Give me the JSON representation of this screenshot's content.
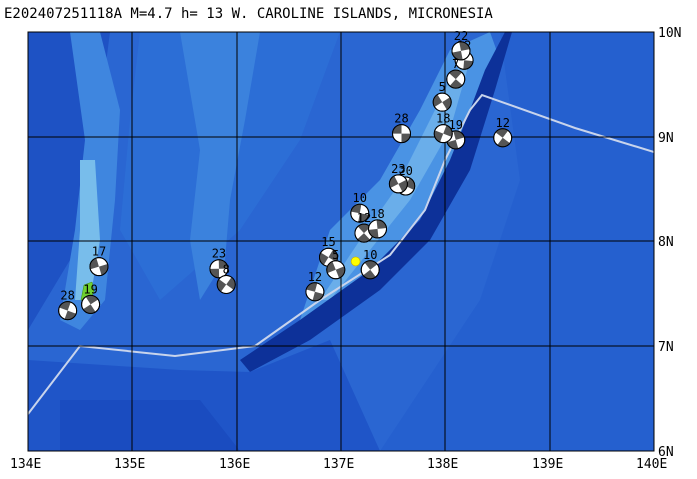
{
  "title": "E202407251118A M=4.7 h= 13 W. CAROLINE ISLANDS, MICRONESIA",
  "lon_labels": [
    "134E",
    "135E",
    "136E",
    "137E",
    "138E",
    "139E",
    "140E"
  ],
  "lat_labels": [
    "10N",
    "9N",
    "8N",
    "7N",
    "6N"
  ],
  "colors": {
    "ocean_deep": "#1d4fc4",
    "ocean_mid": "#2a6fd8",
    "ocean_shallow": "#4f9be6",
    "ridge": "#7cc1ee",
    "trench": "#0c2f9a",
    "grid": "#000000",
    "boundary": "#c8d4ec",
    "island": "#6fcf2f",
    "epicenter": "#ffff00"
  },
  "events": [
    {
      "label": "28",
      "lon": 137.58,
      "lat": 9.03
    },
    {
      "label": "12",
      "lon": 138.55,
      "lat": 8.99
    },
    {
      "label": "19",
      "lon": 138.1,
      "lat": 8.97
    },
    {
      "label": "18",
      "lon": 137.98,
      "lat": 9.03
    },
    {
      "label": "5",
      "lon": 137.97,
      "lat": 9.33
    },
    {
      "label": "12",
      "lon": 138.18,
      "lat": 9.73
    },
    {
      "label": "7",
      "lon": 138.1,
      "lat": 9.55
    },
    {
      "label": "22",
      "lon": 138.15,
      "lat": 9.82
    },
    {
      "label": "20",
      "lon": 137.62,
      "lat": 8.53
    },
    {
      "label": "23",
      "lon": 137.55,
      "lat": 8.55
    },
    {
      "label": "10",
      "lon": 137.18,
      "lat": 8.27
    },
    {
      "label": "12",
      "lon": 137.22,
      "lat": 8.08
    },
    {
      "label": "18",
      "lon": 137.35,
      "lat": 8.12
    },
    {
      "label": "15",
      "lon": 136.88,
      "lat": 7.85
    },
    {
      "label": "5",
      "lon": 136.95,
      "lat": 7.73
    },
    {
      "label": "12",
      "lon": 136.75,
      "lat": 7.52
    },
    {
      "label": "10",
      "lon": 137.28,
      "lat": 7.73
    },
    {
      "label": "23",
      "lon": 135.83,
      "lat": 7.74
    },
    {
      "label": "8",
      "lon": 135.9,
      "lat": 7.59
    },
    {
      "label": "17",
      "lon": 134.68,
      "lat": 7.76
    },
    {
      "label": "28",
      "lon": 134.38,
      "lat": 7.34
    },
    {
      "label": "19",
      "lon": 134.6,
      "lat": 7.4
    }
  ],
  "epicenter": {
    "lon": 137.14,
    "lat": 7.81
  }
}
